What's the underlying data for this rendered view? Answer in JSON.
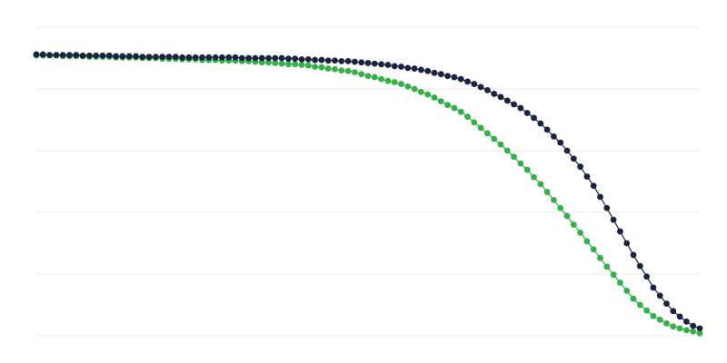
{
  "chart_data": {
    "type": "line",
    "title": "",
    "xlabel": "",
    "ylabel": "",
    "xlim": [
      0,
      100
    ],
    "ylim": [
      0,
      5
    ],
    "grid": "horizontal",
    "legend": "none",
    "markers": true,
    "series": [
      {
        "color": "#34b04a",
        "values": [
          4.54,
          4.54,
          4.54,
          4.54,
          4.53,
          4.53,
          4.53,
          4.53,
          4.52,
          4.52,
          4.52,
          4.52,
          4.51,
          4.51,
          4.51,
          4.51,
          4.5,
          4.5,
          4.5,
          4.49,
          4.49,
          4.49,
          4.48,
          4.48,
          4.48,
          4.47,
          4.47,
          4.47,
          4.46,
          4.46,
          4.46,
          4.45,
          4.45,
          4.44,
          4.43,
          4.43,
          4.42,
          4.41,
          4.4,
          4.4,
          4.39,
          4.38,
          4.36,
          4.35,
          4.33,
          4.32,
          4.3,
          4.29,
          4.27,
          4.24,
          4.21,
          4.19,
          4.16,
          4.13,
          4.11,
          4.08,
          4.04,
          4.0,
          3.95,
          3.91,
          3.86,
          3.8,
          3.74,
          3.69,
          3.63,
          3.55,
          3.46,
          3.37,
          3.28,
          3.19,
          3.1,
          3.0,
          2.9,
          2.79,
          2.69,
          2.57,
          2.46,
          2.33,
          2.2,
          2.07,
          1.94,
          1.8,
          1.67,
          1.53,
          1.4,
          1.26,
          1.12,
          0.99,
          0.86,
          0.73,
          0.6,
          0.5,
          0.41,
          0.32,
          0.26,
          0.2,
          0.15,
          0.12,
          0.09,
          0.07,
          0.04
        ]
      },
      {
        "color": "#1a2340",
        "values": [
          4.56,
          4.56,
          4.55,
          4.55,
          4.55,
          4.55,
          4.55,
          4.54,
          4.54,
          4.54,
          4.54,
          4.54,
          4.53,
          4.53,
          4.53,
          4.53,
          4.52,
          4.52,
          4.52,
          4.52,
          4.52,
          4.52,
          4.51,
          4.51,
          4.51,
          4.51,
          4.51,
          4.51,
          4.51,
          4.51,
          4.51,
          4.5,
          4.5,
          4.5,
          4.5,
          4.5,
          4.5,
          4.5,
          4.49,
          4.49,
          4.48,
          4.48,
          4.47,
          4.47,
          4.46,
          4.46,
          4.45,
          4.45,
          4.44,
          4.43,
          4.42,
          4.41,
          4.4,
          4.39,
          4.37,
          4.36,
          4.34,
          4.33,
          4.31,
          4.29,
          4.26,
          4.24,
          4.21,
          4.19,
          4.16,
          4.12,
          4.08,
          4.03,
          3.98,
          3.92,
          3.87,
          3.81,
          3.75,
          3.69,
          3.61,
          3.53,
          3.44,
          3.34,
          3.23,
          3.13,
          3.0,
          2.87,
          2.74,
          2.58,
          2.43,
          2.25,
          2.07,
          1.88,
          1.69,
          1.5,
          1.31,
          1.13,
          0.96,
          0.78,
          0.65,
          0.52,
          0.4,
          0.31,
          0.23,
          0.16,
          0.12
        ]
      }
    ],
    "gridline_color": "#ebebeb"
  }
}
